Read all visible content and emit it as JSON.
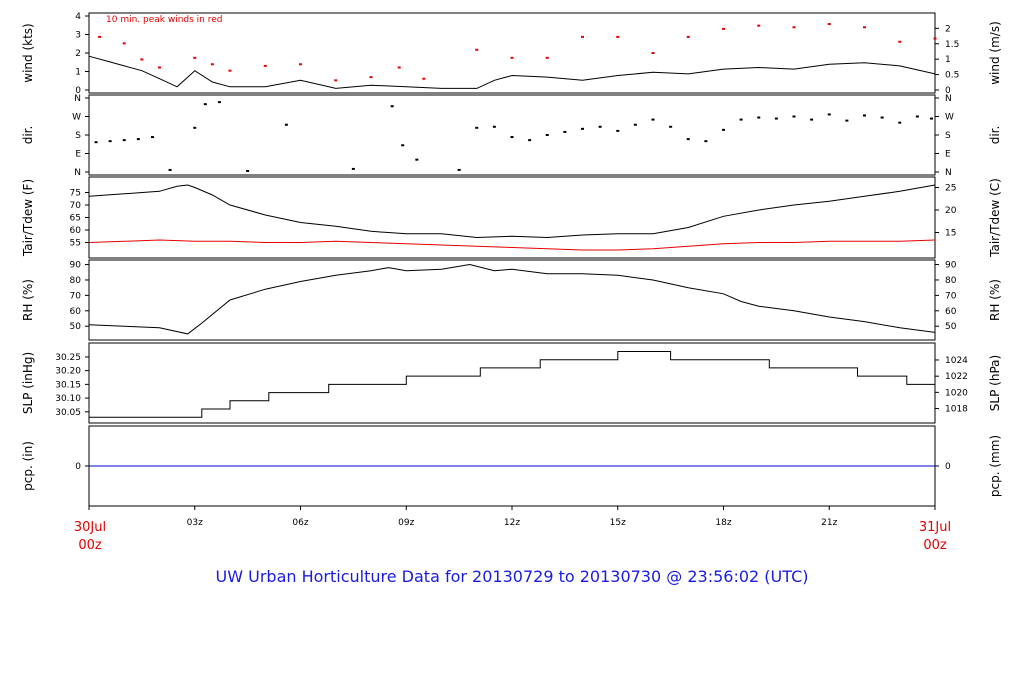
{
  "footer": {
    "title": "UW Urban Horticulture Data for 20130729  to  20130730 @ 23:56:02  (UTC)"
  },
  "x_axis": {
    "start_label": [
      "30Jul",
      "00z"
    ],
    "end_label": [
      "31Jul",
      "00z"
    ],
    "ticks": [
      {
        "hour": 3,
        "label": "03z"
      },
      {
        "hour": 6,
        "label": "06z"
      },
      {
        "hour": 9,
        "label": "09z"
      },
      {
        "hour": 12,
        "label": "12z"
      },
      {
        "hour": 15,
        "label": "15z"
      },
      {
        "hour": 18,
        "label": "18z"
      },
      {
        "hour": 21,
        "label": "21z"
      }
    ],
    "range_hours": [
      0,
      24
    ]
  },
  "colors": {
    "primary": "#000000",
    "peak_and_dewpoint": "#e60000",
    "precip": "#0000cc",
    "footer": "#1a1ae6"
  },
  "chart_data": [
    {
      "panel": "wind",
      "type": "line",
      "ylabel_left": "wind (kts)",
      "ylabel_right": "wind (m/s)",
      "annotation": "10 min. peak winds in red",
      "ylim": [
        0,
        4.6
      ],
      "left_ticks": [
        "0",
        "1",
        "2",
        "3",
        "4"
      ],
      "right_ticks": [
        {
          "v": 0,
          "label": "0"
        },
        {
          "v": 0.5,
          "label": "0.5"
        },
        {
          "v": 1,
          "label": "1"
        },
        {
          "v": 1.5,
          "label": "1.5"
        },
        {
          "v": 2,
          "label": "2"
        }
      ],
      "series": [
        {
          "key": "speed",
          "x": [
            0,
            0.5,
            1.0,
            1.5,
            2.0,
            2.5,
            3.0,
            3.5,
            4.0,
            5.0,
            6.0,
            7.0,
            8.0,
            9.0,
            10.0,
            11.0,
            11.5,
            12.0,
            13.0,
            14.0,
            15.0,
            16.0,
            17.0,
            18.0,
            19.0,
            20.0,
            21.0,
            22.0,
            23.0,
            24.0
          ],
          "y": [
            2.1,
            1.8,
            1.5,
            1.2,
            0.7,
            0.2,
            1.2,
            0.5,
            0.2,
            0.2,
            0.6,
            0.1,
            0.3,
            0.2,
            0.1,
            0.1,
            0.6,
            0.9,
            0.8,
            0.6,
            0.9,
            1.1,
            1.0,
            1.3,
            1.4,
            1.3,
            1.6,
            1.7,
            1.5,
            1.0
          ]
        },
        {
          "key": "peak",
          "x": [
            0.3,
            1.0,
            1.5,
            2.0,
            3.0,
            3.5,
            4.0,
            5.0,
            6.0,
            7.0,
            8.0,
            8.8,
            9.5,
            11.0,
            12.0,
            13.0,
            14.0,
            15.0,
            16.0,
            17.0,
            18.0,
            19.0,
            20.0,
            21.0,
            22.0,
            23.0,
            24.0
          ],
          "y": [
            3.3,
            2.9,
            1.9,
            1.4,
            2.0,
            1.6,
            1.2,
            1.5,
            1.6,
            0.6,
            0.8,
            1.4,
            0.7,
            2.5,
            2.0,
            2.0,
            3.3,
            3.3,
            2.3,
            3.3,
            3.8,
            4.0,
            3.9,
            4.1,
            3.9,
            3.0,
            3.2
          ]
        }
      ]
    },
    {
      "panel": "dir",
      "type": "scatter",
      "ylabel_left": "dir.",
      "ylabel_right": "dir.",
      "ylim": [
        0,
        360
      ],
      "left_ticks": [
        "N",
        "E",
        "S",
        "W",
        "N"
      ],
      "right_ticks": [
        "N",
        "E",
        "S",
        "W",
        "N"
      ],
      "x": [
        0.2,
        0.6,
        1.0,
        1.4,
        1.8,
        2.3,
        3.0,
        3.3,
        3.7,
        4.5,
        5.6,
        7.5,
        8.6,
        8.9,
        9.3,
        10.5,
        11.0,
        11.5,
        12.0,
        12.5,
        13.0,
        13.5,
        14.0,
        14.5,
        15.0,
        15.5,
        16.0,
        16.5,
        17.0,
        17.5,
        18.0,
        18.5,
        19.0,
        19.5,
        20.0,
        20.5,
        21.0,
        21.5,
        22.0,
        22.5,
        23.0,
        23.5,
        23.9
      ],
      "y": [
        145,
        150,
        155,
        160,
        170,
        10,
        215,
        330,
        340,
        5,
        230,
        15,
        320,
        130,
        60,
        10,
        215,
        220,
        170,
        155,
        180,
        195,
        210,
        220,
        200,
        230,
        255,
        220,
        160,
        150,
        205,
        255,
        265,
        260,
        270,
        255,
        280,
        250,
        275,
        265,
        240,
        270,
        260
      ]
    },
    {
      "panel": "temp",
      "type": "line",
      "ylabel_left": "Tair/Tdew (F)",
      "ylabel_right": "Tair/Tdew (C)",
      "ylim": [
        50,
        80
      ],
      "left_ticks": [
        {
          "v": 55,
          "label": "55"
        },
        {
          "v": 60,
          "label": "60"
        },
        {
          "v": 65,
          "label": "65"
        },
        {
          "v": 70,
          "label": "70"
        },
        {
          "v": 75,
          "label": "75"
        }
      ],
      "right_ticks": [
        {
          "v": 15,
          "label": "15"
        },
        {
          "v": 20,
          "label": "20"
        },
        {
          "v": 25,
          "label": "25"
        }
      ],
      "series": [
        {
          "key": "tair",
          "x": [
            0,
            1,
            2,
            2.5,
            2.8,
            3.0,
            3.5,
            4.0,
            5.0,
            6.0,
            7.0,
            8.0,
            9.0,
            10.0,
            11.0,
            12.0,
            13.0,
            14.0,
            15.0,
            16.0,
            17.0,
            18.0,
            19.0,
            20.0,
            21.0,
            22.0,
            23.0,
            24.0
          ],
          "y": [
            73.5,
            74.5,
            75.5,
            77.5,
            78.0,
            77.0,
            74.0,
            70.0,
            66.0,
            63.0,
            61.5,
            59.5,
            58.5,
            58.5,
            57.0,
            57.5,
            57.0,
            58.0,
            58.5,
            58.5,
            61.0,
            65.5,
            68.0,
            70.0,
            71.5,
            73.5,
            75.5,
            78.0
          ]
        },
        {
          "key": "tdew",
          "x": [
            0,
            1,
            2,
            3,
            4,
            5,
            6,
            7,
            8,
            9,
            10,
            11,
            12,
            13,
            14,
            15,
            16,
            17,
            18,
            19,
            20,
            21,
            22,
            23,
            24
          ],
          "y": [
            55.0,
            55.5,
            56.0,
            55.5,
            55.5,
            55.0,
            55.0,
            55.5,
            55.0,
            54.5,
            54.0,
            53.5,
            53.0,
            52.5,
            52.0,
            52.0,
            52.5,
            53.5,
            54.5,
            55.0,
            55.0,
            55.5,
            55.5,
            55.5,
            56.0
          ]
        }
      ]
    },
    {
      "panel": "rh",
      "type": "line",
      "ylabel_left": "RH (%)",
      "ylabel_right": "RH (%)",
      "ylim": [
        43,
        91
      ],
      "left_ticks": [
        {
          "v": 50,
          "label": "50"
        },
        {
          "v": 60,
          "label": "60"
        },
        {
          "v": 70,
          "label": "70"
        },
        {
          "v": 80,
          "label": "80"
        },
        {
          "v": 90,
          "label": "90"
        }
      ],
      "right_ticks": [
        {
          "v": 50,
          "label": "50"
        },
        {
          "v": 60,
          "label": "60"
        },
        {
          "v": 70,
          "label": "70"
        },
        {
          "v": 80,
          "label": "80"
        },
        {
          "v": 90,
          "label": "90"
        }
      ],
      "series": [
        {
          "key": "rh",
          "x": [
            0,
            1,
            2,
            2.8,
            3.2,
            4.0,
            5.0,
            6.0,
            7.0,
            8.0,
            8.5,
            9.0,
            10.0,
            10.8,
            11.5,
            12.0,
            13.0,
            14.0,
            15.0,
            16.0,
            17.0,
            18.0,
            18.5,
            19.0,
            20.0,
            21.0,
            22.0,
            23.0,
            24.0
          ],
          "y": [
            51,
            50,
            49,
            45,
            52,
            67,
            74,
            79,
            83,
            86,
            88,
            86,
            87,
            90,
            86,
            87,
            84,
            84,
            83,
            80,
            75,
            71,
            66,
            63,
            60,
            56,
            53,
            49,
            46
          ]
        }
      ]
    },
    {
      "panel": "slp",
      "type": "line",
      "ylabel_left": "SLP (inHg)",
      "ylabel_right": "SLP (hPa)",
      "ylim": [
        30.02,
        30.29
      ],
      "left_ticks": [
        {
          "v": 30.05,
          "label": "30.05"
        },
        {
          "v": 30.1,
          "label": "30.10"
        },
        {
          "v": 30.15,
          "label": "30.15"
        },
        {
          "v": 30.2,
          "label": "30.20"
        },
        {
          "v": 30.25,
          "label": "30.25"
        }
      ],
      "right_ticks": [
        {
          "v": 30.0618,
          "label": "1018"
        },
        {
          "v": 30.1209,
          "label": "1020"
        },
        {
          "v": 30.1799,
          "label": "1022"
        },
        {
          "v": 30.239,
          "label": "1024"
        }
      ],
      "series": [
        {
          "key": "slp",
          "x": [
            0,
            3.2,
            3.2,
            4.0,
            4.0,
            5.1,
            5.1,
            6.8,
            6.8,
            9.0,
            9.0,
            11.1,
            11.1,
            12.8,
            12.8,
            15.0,
            15.0,
            16.5,
            16.5,
            19.3,
            19.3,
            21.8,
            21.8,
            23.2,
            23.2,
            24.0
          ],
          "y": [
            30.03,
            30.03,
            30.06,
            30.06,
            30.09,
            30.09,
            30.12,
            30.12,
            30.15,
            30.15,
            30.18,
            30.18,
            30.21,
            30.21,
            30.24,
            30.24,
            30.27,
            30.27,
            30.24,
            30.24,
            30.21,
            30.21,
            30.18,
            30.18,
            30.15,
            30.15
          ]
        }
      ]
    },
    {
      "panel": "pcp",
      "type": "line",
      "ylabel_left": "pcp. (in)",
      "ylabel_right": "pcp. (mm)",
      "ylim": [
        -1,
        1
      ],
      "left_ticks": [
        {
          "v": 0,
          "label": "0"
        }
      ],
      "right_ticks": [
        {
          "v": 0,
          "label": "0"
        }
      ],
      "series": [
        {
          "key": "pcp",
          "x": [
            0,
            24
          ],
          "y": [
            0,
            0
          ]
        }
      ]
    }
  ]
}
